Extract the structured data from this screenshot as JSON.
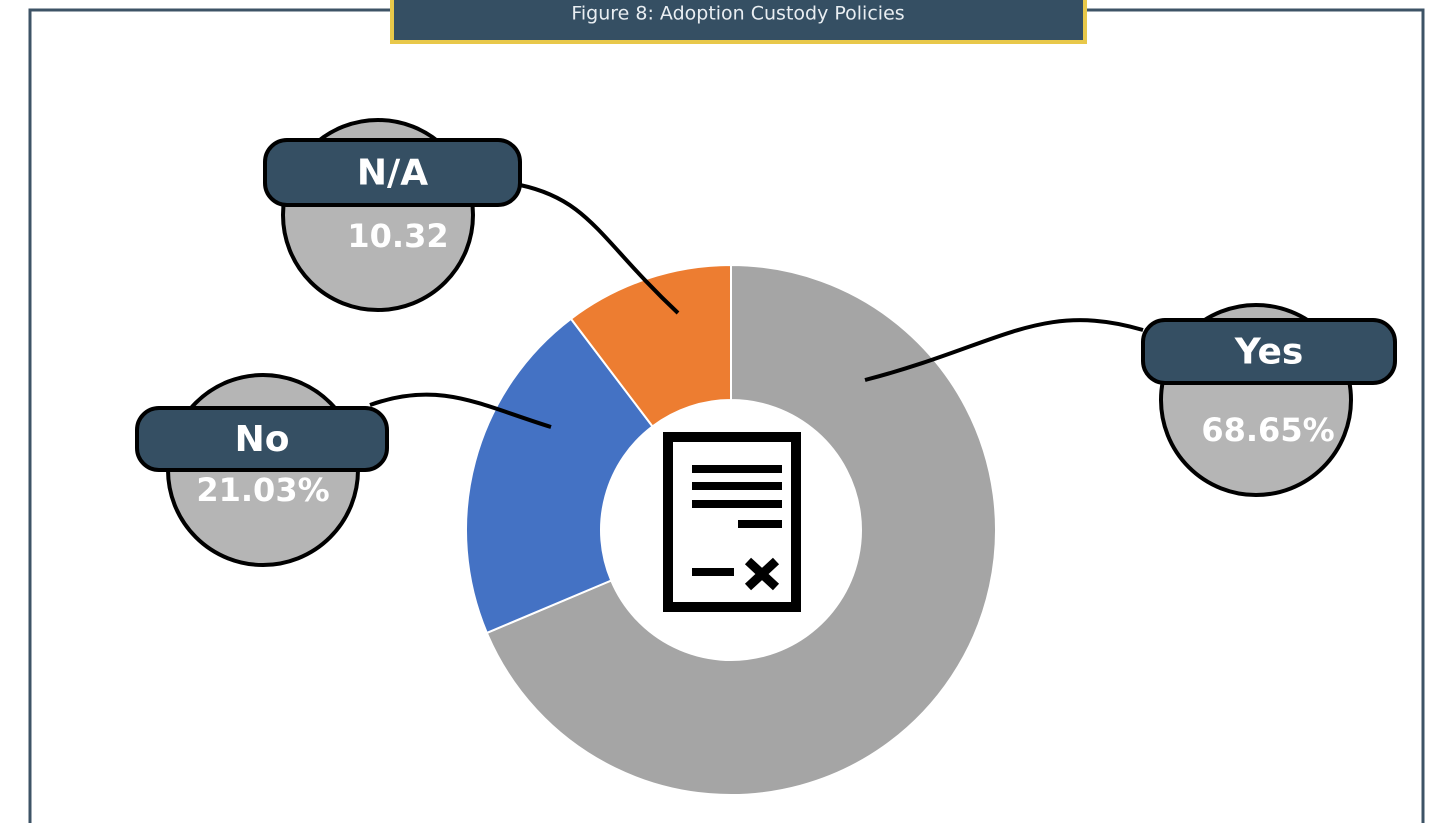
{
  "chart_data": {
    "type": "donut",
    "title": "Figure 8: Adoption Custody Policies",
    "categories": [
      "Yes",
      "No",
      "N/A"
    ],
    "values": [
      68.65,
      21.03,
      10.32
    ],
    "value_labels": [
      "68.65%",
      "21.03%",
      "10.32"
    ],
    "colors": [
      "#a5a5a5",
      "#4472c4",
      "#ed7d31"
    ]
  }
}
